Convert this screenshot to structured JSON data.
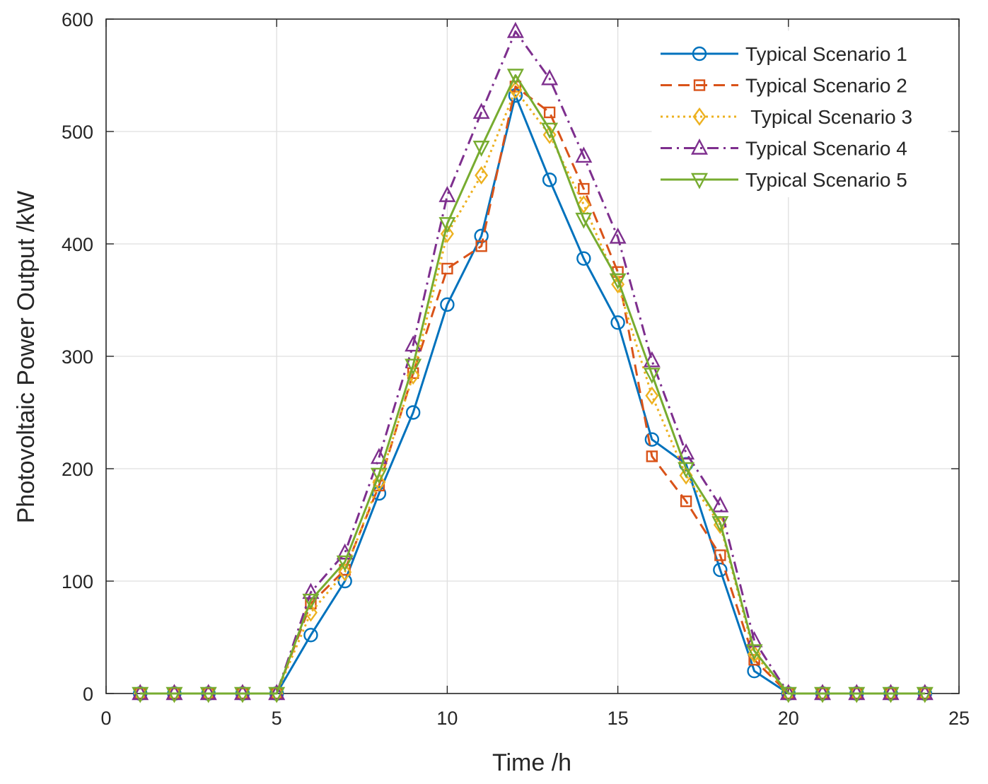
{
  "chart_data": {
    "type": "line",
    "title": "",
    "xlabel": "Time /h",
    "ylabel": "Photovoltaic Power Output /kW",
    "xlim": [
      0,
      25
    ],
    "ylim": [
      0,
      600
    ],
    "xticks": [
      0,
      5,
      10,
      15,
      20,
      25
    ],
    "yticks": [
      0,
      100,
      200,
      300,
      400,
      500,
      600
    ],
    "grid": true,
    "legend_position": "top-right",
    "x": [
      1,
      2,
      3,
      4,
      5,
      6,
      7,
      8,
      9,
      10,
      11,
      12,
      13,
      14,
      15,
      16,
      17,
      18,
      19,
      20,
      21,
      22,
      23,
      24
    ],
    "series": [
      {
        "name": "Typical Scenario 1",
        "color": "#0072bd",
        "marker": "circle",
        "line_style": "solid",
        "values": [
          0,
          0,
          0,
          0,
          0,
          52,
          100,
          178,
          250,
          346,
          407,
          532,
          457,
          387,
          330,
          226,
          204,
          110,
          20,
          0,
          0,
          0,
          0,
          0
        ]
      },
      {
        "name": "Typical Scenario 2",
        "color": "#d95319",
        "marker": "square",
        "line_style": "dashed",
        "values": [
          0,
          0,
          0,
          0,
          0,
          80,
          110,
          185,
          285,
          378,
          398,
          540,
          517,
          449,
          375,
          211,
          171,
          123,
          30,
          0,
          0,
          0,
          0,
          0
        ]
      },
      {
        "name": " Typical Scenario 3",
        "color": "#edb120",
        "marker": "diamond",
        "line_style": "dotted",
        "values": [
          0,
          0,
          0,
          0,
          0,
          72,
          108,
          188,
          283,
          409,
          461,
          537,
          497,
          435,
          364,
          265,
          194,
          150,
          35,
          0,
          0,
          0,
          0,
          0
        ]
      },
      {
        "name": "Typical Scenario 4",
        "color": "#7e2f8e",
        "marker": "triangle-up",
        "line_style": "dash-dot",
        "values": [
          0,
          0,
          0,
          0,
          0,
          90,
          125,
          210,
          310,
          443,
          517,
          589,
          547,
          478,
          406,
          296,
          214,
          167,
          47,
          0,
          0,
          0,
          0,
          0
        ]
      },
      {
        "name": "Typical Scenario 5",
        "color": "#77ac30",
        "marker": "triangle-down",
        "line_style": "solid",
        "values": [
          0,
          0,
          0,
          0,
          0,
          83,
          117,
          195,
          292,
          418,
          486,
          550,
          502,
          422,
          368,
          284,
          200,
          152,
          38,
          0,
          0,
          0,
          0,
          0
        ]
      }
    ]
  }
}
